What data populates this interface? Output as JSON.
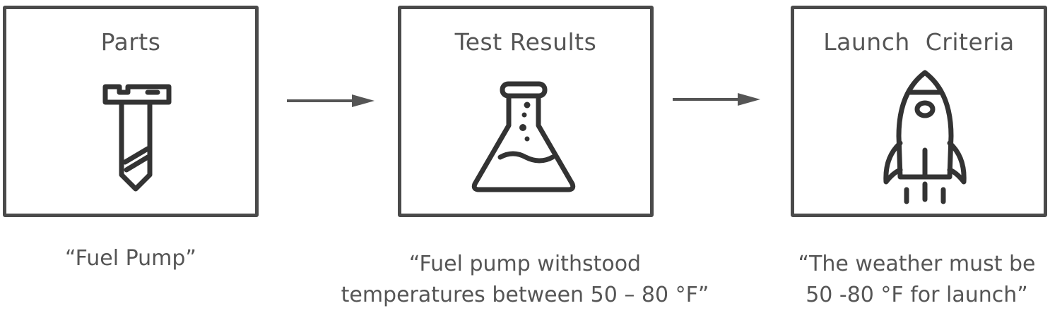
{
  "steps": [
    {
      "title": "Parts",
      "icon": "screw-icon",
      "caption_lines": [
        "“Fuel Pump”"
      ]
    },
    {
      "title": "Test Results",
      "icon": "flask-icon",
      "caption_lines": [
        "“Fuel pump withstood",
        "temperatures between 50 – 80 °F”"
      ]
    },
    {
      "title": "Launch  Criteria",
      "icon": "rocket-icon",
      "caption_lines": [
        "“The weather must be",
        "50 -80 °F for launch”"
      ]
    }
  ],
  "colors": {
    "stroke": "#333333",
    "border": "#4a4a4a",
    "text": "#555555"
  }
}
